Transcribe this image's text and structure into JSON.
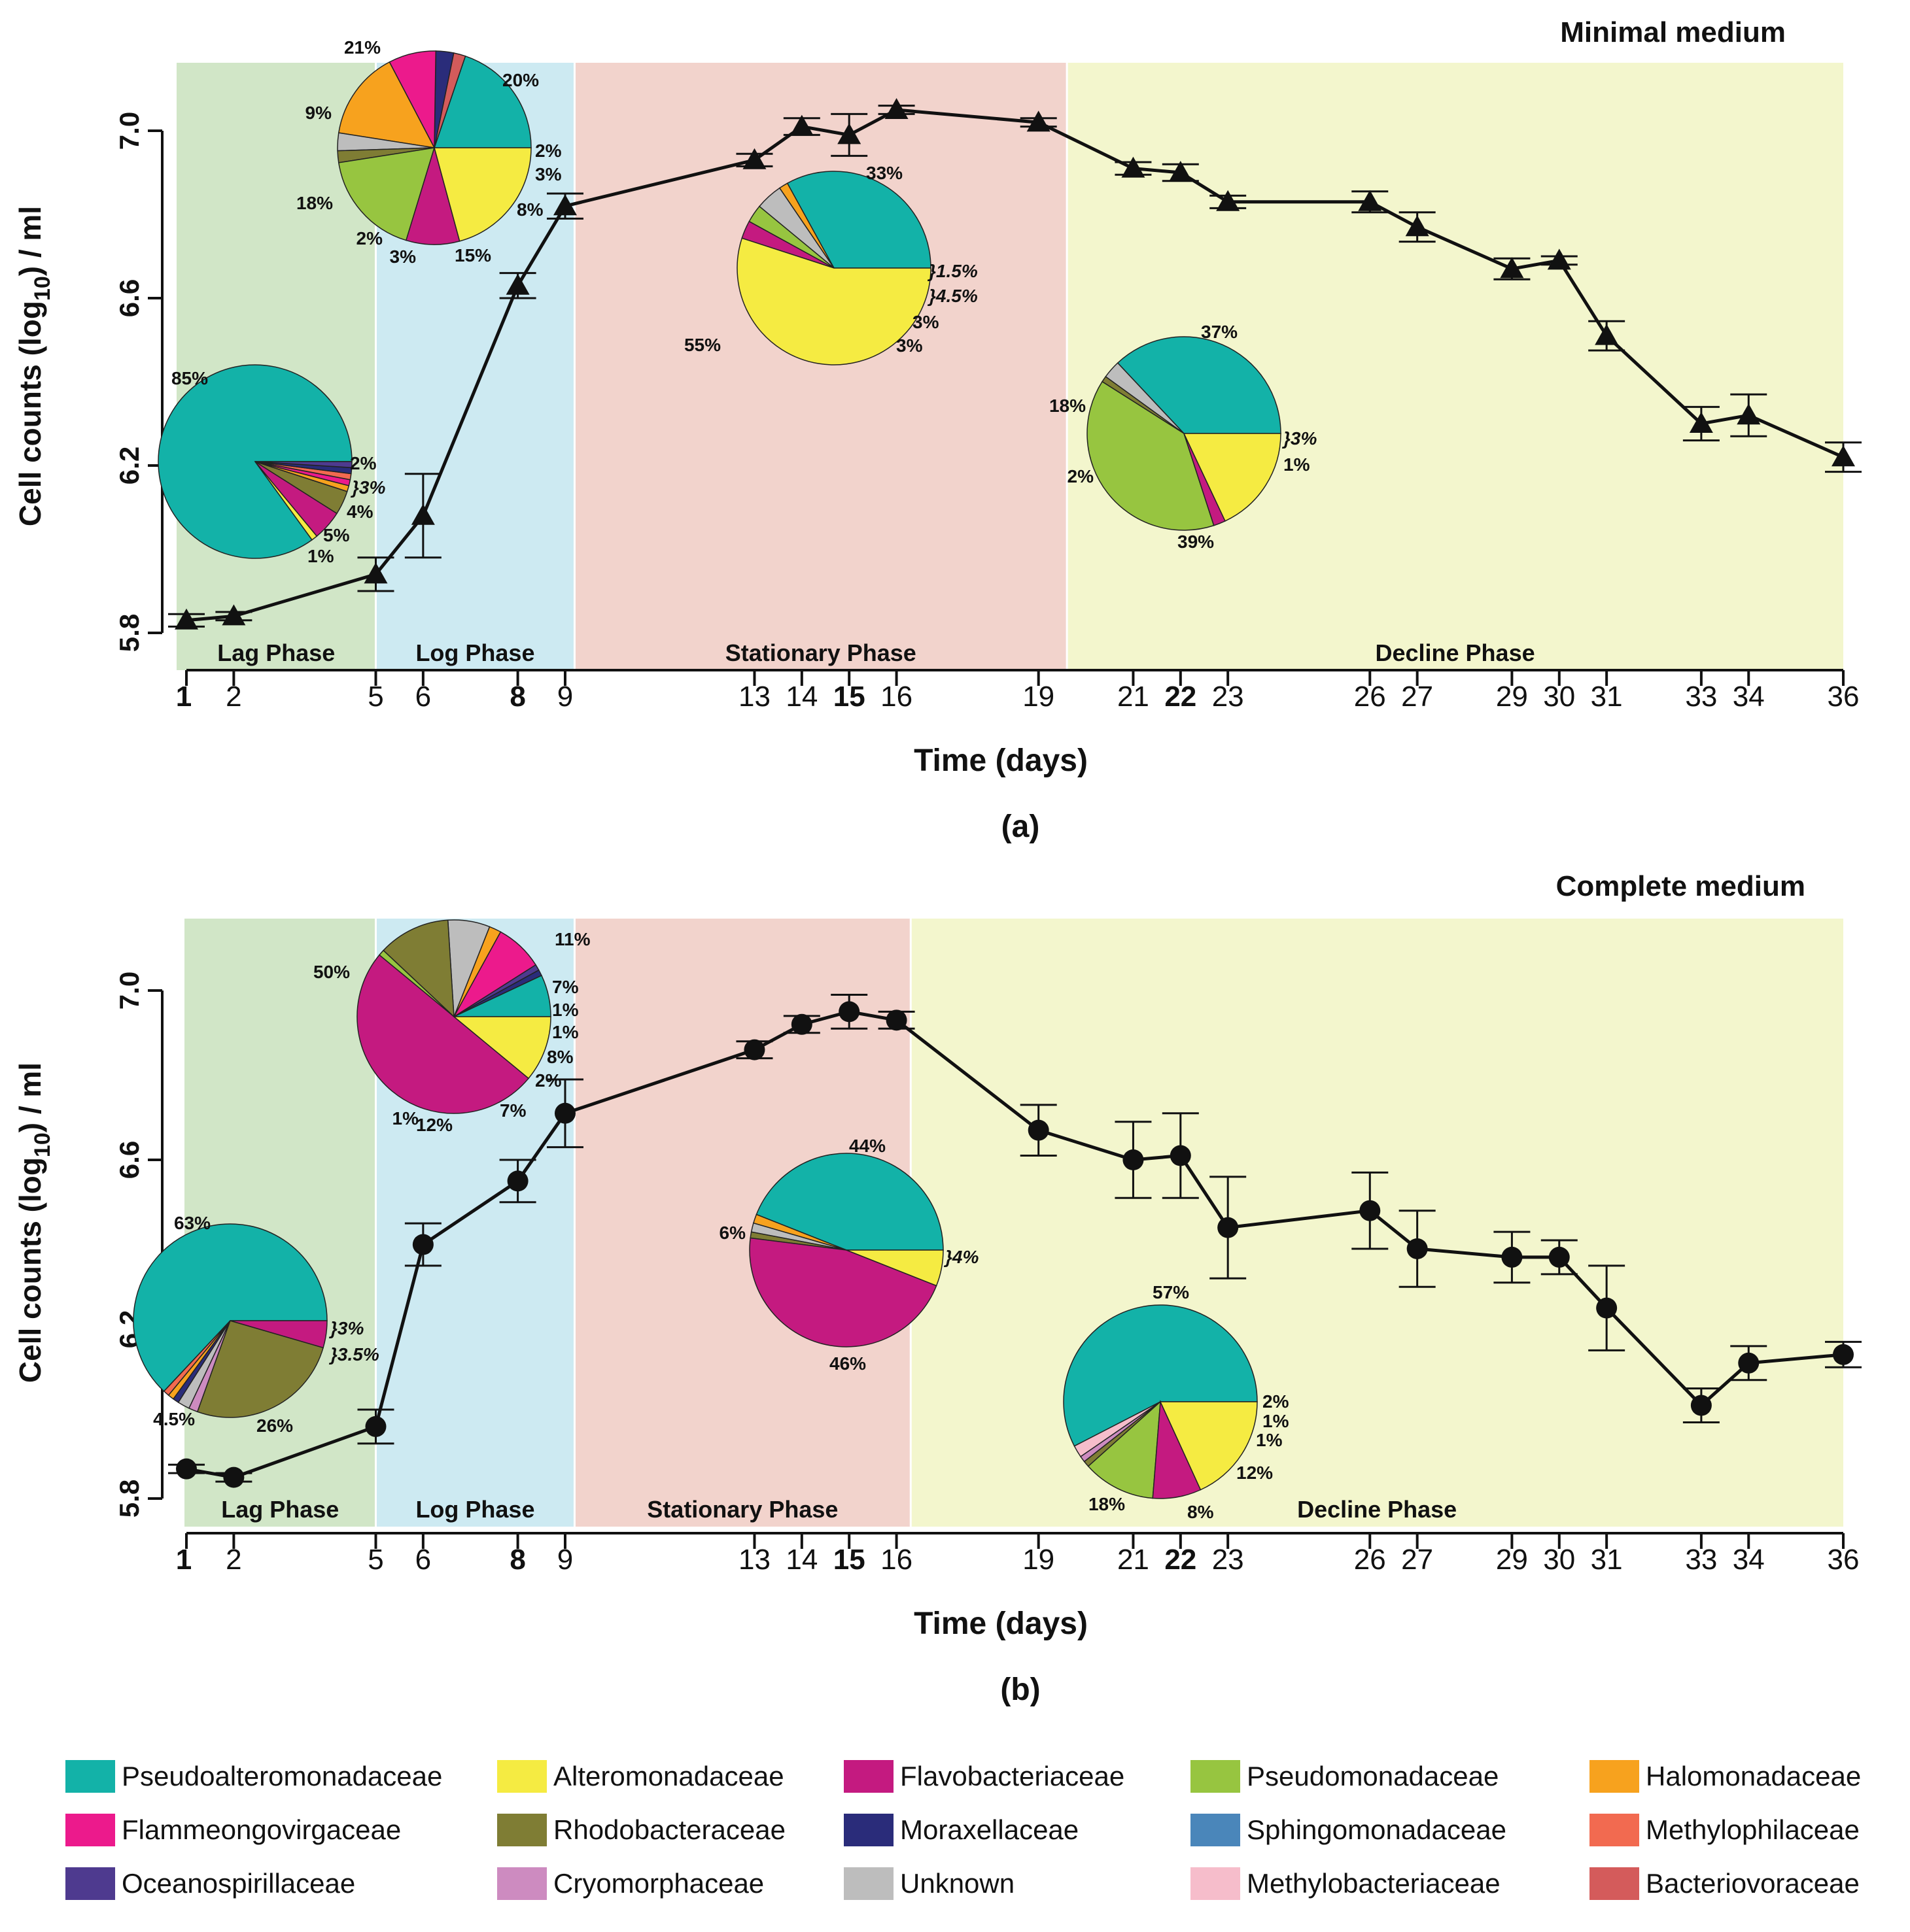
{
  "families": {
    "Pseudoalteromonadaceae": "#13B2A8",
    "Alteromonadaceae": "#F5EB42",
    "Flavobacteriaceae": "#C41A80",
    "Pseudomonadaceae": "#97C540",
    "Halomonadaceae": "#F7A21E",
    "Flammeongovirgaceae": "#EC1A8C",
    "Rhodobacteraceae": "#7F7D34",
    "Moraxellaceae": "#2A2C7A",
    "Sphingomonadaceae": "#4A86BA",
    "Methylophilaceae": "#F26A50",
    "Oceanospirillaceae": "#4E3A8F",
    "Cryomorphaceae": "#CD8BC0",
    "Unknown": "#BDBDBD",
    "Methylobacteriaceae": "#F6BDCB",
    "Bacteriovoraceae": "#D45B5B"
  },
  "legend_order": [
    "Pseudoalteromonadaceae",
    "Alteromonadaceae",
    "Flavobacteriaceae",
    "Pseudomonadaceae",
    "Halomonadaceae",
    "Flammeongovirgaceae",
    "Rhodobacteraceae",
    "Moraxellaceae",
    "Sphingomonadaceae",
    "Methylophilaceae",
    "Oceanospirillaceae",
    "Cryomorphaceae",
    "Unknown",
    "Methylobacteriaceae",
    "Bacteriovoraceae"
  ],
  "phase_colors": {
    "lag": "#D1E6C7",
    "log": "#CDEAF2",
    "stationary": "#F2D3CC",
    "decline": "#F3F6CD"
  },
  "chart_data": [
    {
      "type": "line",
      "panel_label": "(a)",
      "title": "Minimal medium",
      "xlabel": "Time (days)",
      "ylabel_parts": [
        "Cell counts (log",
        "10",
        ") / ml"
      ],
      "marker": "triangle",
      "ylim": [
        5.8,
        7.0
      ],
      "yticks": [
        "5.8",
        "6.2",
        "6.6",
        "7.0"
      ],
      "x_ticks": [
        1,
        2,
        5,
        6,
        8,
        9,
        13,
        14,
        15,
        16,
        19,
        21,
        22,
        23,
        26,
        27,
        29,
        30,
        31,
        33,
        34,
        36
      ],
      "x_bold": [
        1,
        8,
        15,
        22
      ],
      "phases": [
        {
          "key": "lag",
          "label": "Lag Phase",
          "start": 0.85,
          "end": 5.0
        },
        {
          "key": "log",
          "label": "Log Phase",
          "start": 5.0,
          "end": 9.2
        },
        {
          "key": "stationary",
          "label": "Stationary Phase",
          "start": 9.2,
          "end": 19.6
        },
        {
          "key": "decline",
          "label": "Decline Phase",
          "start": 19.6,
          "end": 36.0
        }
      ],
      "points": [
        {
          "x": 1,
          "y": 5.83,
          "err": 0.015
        },
        {
          "x": 2,
          "y": 5.84,
          "err": 0.01
        },
        {
          "x": 5,
          "y": 5.94,
          "err": 0.04
        },
        {
          "x": 6,
          "y": 6.08,
          "err": 0.1
        },
        {
          "x": 8,
          "y": 6.63,
          "err": 0.03
        },
        {
          "x": 9,
          "y": 6.82,
          "err": 0.03
        },
        {
          "x": 13,
          "y": 6.93,
          "err": 0.015
        },
        {
          "x": 14,
          "y": 7.01,
          "err": 0.02
        },
        {
          "x": 15,
          "y": 6.99,
          "err": 0.05
        },
        {
          "x": 16,
          "y": 7.05,
          "err": 0.01
        },
        {
          "x": 19,
          "y": 7.02,
          "err": 0.01
        },
        {
          "x": 21,
          "y": 6.91,
          "err": 0.015
        },
        {
          "x": 22,
          "y": 6.9,
          "err": 0.02
        },
        {
          "x": 23,
          "y": 6.83,
          "err": 0.015
        },
        {
          "x": 26,
          "y": 6.83,
          "err": 0.025
        },
        {
          "x": 27,
          "y": 6.77,
          "err": 0.035
        },
        {
          "x": 29,
          "y": 6.67,
          "err": 0.025
        },
        {
          "x": 30,
          "y": 6.69,
          "err": 0.01
        },
        {
          "x": 31,
          "y": 6.51,
          "err": 0.035
        },
        {
          "x": 33,
          "y": 6.3,
          "err": 0.04
        },
        {
          "x": 34,
          "y": 6.32,
          "err": 0.05
        },
        {
          "x": 36,
          "y": 6.22,
          "err": 0.035
        }
      ],
      "pies": [
        {
          "day": 1,
          "slices": [
            {
              "family": "Pseudoalteromonadaceae",
              "value": 85
            },
            {
              "family": "Alteromonadaceae",
              "value": 1
            },
            {
              "family": "Flavobacteriaceae",
              "value": 5
            },
            {
              "family": "Rhodobacteraceae",
              "value": 4
            },
            {
              "family": "Halomonadaceae",
              "value": 1
            },
            {
              "family": "Flammeongovirgaceae",
              "value": 1
            },
            {
              "family": "Methylophilaceae",
              "value": 1
            },
            {
              "family": "Moraxellaceae",
              "value": 1
            },
            {
              "family": "Oceanospirillaceae",
              "value": 1
            }
          ],
          "labels": [
            "85%",
            "2%",
            "}3%",
            "4%",
            "5%",
            "1%"
          ]
        },
        {
          "day": 8,
          "slices": [
            {
              "family": "Pseudoalteromonadaceae",
              "value": 20
            },
            {
              "family": "Bacteriovoraceae",
              "value": 2
            },
            {
              "family": "Moraxellaceae",
              "value": 3
            },
            {
              "family": "Flammeongovirgaceae",
              "value": 8
            },
            {
              "family": "Halomonadaceae",
              "value": 15
            },
            {
              "family": "Unknown",
              "value": 3
            },
            {
              "family": "Rhodobacteraceae",
              "value": 2
            },
            {
              "family": "Pseudomonadaceae",
              "value": 18
            },
            {
              "family": "Flavobacteriaceae",
              "value": 9
            },
            {
              "family": "Alteromonadaceae",
              "value": 21
            }
          ],
          "labels": [
            "21%",
            "20%",
            "9%",
            "2%",
            "3%",
            "8%",
            "18%",
            "2%",
            "3%",
            "15%"
          ]
        },
        {
          "day": 15,
          "slices": [
            {
              "family": "Pseudoalteromonadaceae",
              "value": 33
            },
            {
              "family": "Halomonadaceae",
              "value": 1.5
            },
            {
              "family": "Unknown",
              "value": 4.5
            },
            {
              "family": "Pseudomonadaceae",
              "value": 3
            },
            {
              "family": "Flavobacteriaceae",
              "value": 3
            },
            {
              "family": "Alteromonadaceae",
              "value": 55
            }
          ],
          "labels": [
            "33%",
            "}1.5%",
            "}4.5%",
            "3%",
            "3%",
            "55%"
          ]
        },
        {
          "day": 22,
          "slices": [
            {
              "family": "Pseudoalteromonadaceae",
              "value": 37
            },
            {
              "family": "Unknown",
              "value": 3
            },
            {
              "family": "Rhodobacteraceae",
              "value": 1
            },
            {
              "family": "Pseudomonadaceae",
              "value": 39
            },
            {
              "family": "Flavobacteriaceae",
              "value": 2
            },
            {
              "family": "Alteromonadaceae",
              "value": 18
            }
          ],
          "labels": [
            "37%",
            "18%",
            "}3%",
            "1%",
            "2%",
            "39%"
          ]
        }
      ]
    },
    {
      "type": "line",
      "panel_label": "(b)",
      "title": "Complete medium",
      "xlabel": "Time (days)",
      "ylabel_parts": [
        "Cell counts (log",
        "10",
        ") / ml"
      ],
      "marker": "circle",
      "ylim": [
        5.8,
        7.0
      ],
      "yticks": [
        "5.8",
        "6.2",
        "6.6",
        "7.0"
      ],
      "x_ticks": [
        1,
        2,
        5,
        6,
        8,
        9,
        13,
        14,
        15,
        16,
        19,
        21,
        22,
        23,
        26,
        27,
        29,
        30,
        31,
        33,
        34,
        36
      ],
      "x_bold": [
        1,
        8,
        15,
        22
      ],
      "phases": [
        {
          "key": "lag",
          "label": "Lag Phase",
          "start": 1.0,
          "end": 5.0
        },
        {
          "key": "log",
          "label": "Log Phase",
          "start": 5.0,
          "end": 9.2
        },
        {
          "key": "stationary",
          "label": "Stationary Phase",
          "start": 9.2,
          "end": 16.3
        },
        {
          "key": "decline",
          "label": "Decline Phase",
          "start": 16.3,
          "end": 36.0
        }
      ],
      "points": [
        {
          "x": 1,
          "y": 5.87,
          "err": 0.01
        },
        {
          "x": 2,
          "y": 5.85,
          "err": 0.01
        },
        {
          "x": 5,
          "y": 5.97,
          "err": 0.04
        },
        {
          "x": 6,
          "y": 6.4,
          "err": 0.05
        },
        {
          "x": 8,
          "y": 6.55,
          "err": 0.05
        },
        {
          "x": 9,
          "y": 6.71,
          "err": 0.08
        },
        {
          "x": 13,
          "y": 6.86,
          "err": 0.02
        },
        {
          "x": 14,
          "y": 6.92,
          "err": 0.02
        },
        {
          "x": 15,
          "y": 6.95,
          "err": 0.04
        },
        {
          "x": 16,
          "y": 6.93,
          "err": 0.02
        },
        {
          "x": 19,
          "y": 6.67,
          "err": 0.06
        },
        {
          "x": 21,
          "y": 6.6,
          "err": 0.09
        },
        {
          "x": 22,
          "y": 6.61,
          "err": 0.1
        },
        {
          "x": 23,
          "y": 6.44,
          "err": 0.12
        },
        {
          "x": 26,
          "y": 6.48,
          "err": 0.09
        },
        {
          "x": 27,
          "y": 6.39,
          "err": 0.09
        },
        {
          "x": 29,
          "y": 6.37,
          "err": 0.06
        },
        {
          "x": 30,
          "y": 6.37,
          "err": 0.04
        },
        {
          "x": 31,
          "y": 6.25,
          "err": 0.1
        },
        {
          "x": 33,
          "y": 6.02,
          "err": 0.04
        },
        {
          "x": 34,
          "y": 6.12,
          "err": 0.04
        },
        {
          "x": 36,
          "y": 6.14,
          "err": 0.03
        }
      ],
      "pies": [
        {
          "day": 1,
          "slices": [
            {
              "family": "Pseudoalteromonadaceae",
              "value": 63
            },
            {
              "family": "Methylophilaceae",
              "value": 1
            },
            {
              "family": "Halomonadaceae",
              "value": 1
            },
            {
              "family": "Moraxellaceae",
              "value": 1
            },
            {
              "family": "Unknown",
              "value": 2
            },
            {
              "family": "Cryomorphaceae",
              "value": 1.5
            },
            {
              "family": "Rhodobacteraceae",
              "value": 26
            },
            {
              "family": "Flavobacteriaceae",
              "value": 4.5
            }
          ],
          "labels": [
            "63%",
            "}3%",
            "}3.5%",
            "26%",
            "4.5%"
          ]
        },
        {
          "day": 8,
          "slices": [
            {
              "family": "Pseudoalteromonadaceae",
              "value": 7
            },
            {
              "family": "Moraxellaceae",
              "value": 1
            },
            {
              "family": "Oceanospirillaceae",
              "value": 1
            },
            {
              "family": "Flammeongovirgaceae",
              "value": 8
            },
            {
              "family": "Halomonadaceae",
              "value": 2
            },
            {
              "family": "Unknown",
              "value": 7
            },
            {
              "family": "Rhodobacteraceae",
              "value": 12
            },
            {
              "family": "Pseudomonadaceae",
              "value": 1
            },
            {
              "family": "Flavobacteriaceae",
              "value": 50
            },
            {
              "family": "Alteromonadaceae",
              "value": 11
            }
          ],
          "labels": [
            "50%",
            "11%",
            "7%",
            "1%",
            "1%",
            "8%",
            "2%",
            "7%",
            "12%",
            "1%"
          ]
        },
        {
          "day": 15,
          "slices": [
            {
              "family": "Pseudoalteromonadaceae",
              "value": 44
            },
            {
              "family": "Halomonadaceae",
              "value": 1.5
            },
            {
              "family": "Unknown",
              "value": 1.5
            },
            {
              "family": "Rhodobacteraceae",
              "value": 1
            },
            {
              "family": "Flavobacteriaceae",
              "value": 46
            },
            {
              "family": "Alteromonadaceae",
              "value": 6
            }
          ],
          "labels": [
            "44%",
            "}4%",
            "6%",
            "46%"
          ]
        },
        {
          "day": 22,
          "slices": [
            {
              "family": "Pseudoalteromonadaceae",
              "value": 57
            },
            {
              "family": "Methylobacteriaceae",
              "value": 2
            },
            {
              "family": "Cryomorphaceae",
              "value": 1
            },
            {
              "family": "Rhodobacteraceae",
              "value": 1
            },
            {
              "family": "Pseudomonadaceae",
              "value": 12
            },
            {
              "family": "Flavobacteriaceae",
              "value": 8
            },
            {
              "family": "Alteromonadaceae",
              "value": 18
            }
          ],
          "labels": [
            "57%",
            "2%",
            "1%",
            "1%",
            "12%",
            "8%",
            "18%"
          ]
        }
      ]
    }
  ]
}
